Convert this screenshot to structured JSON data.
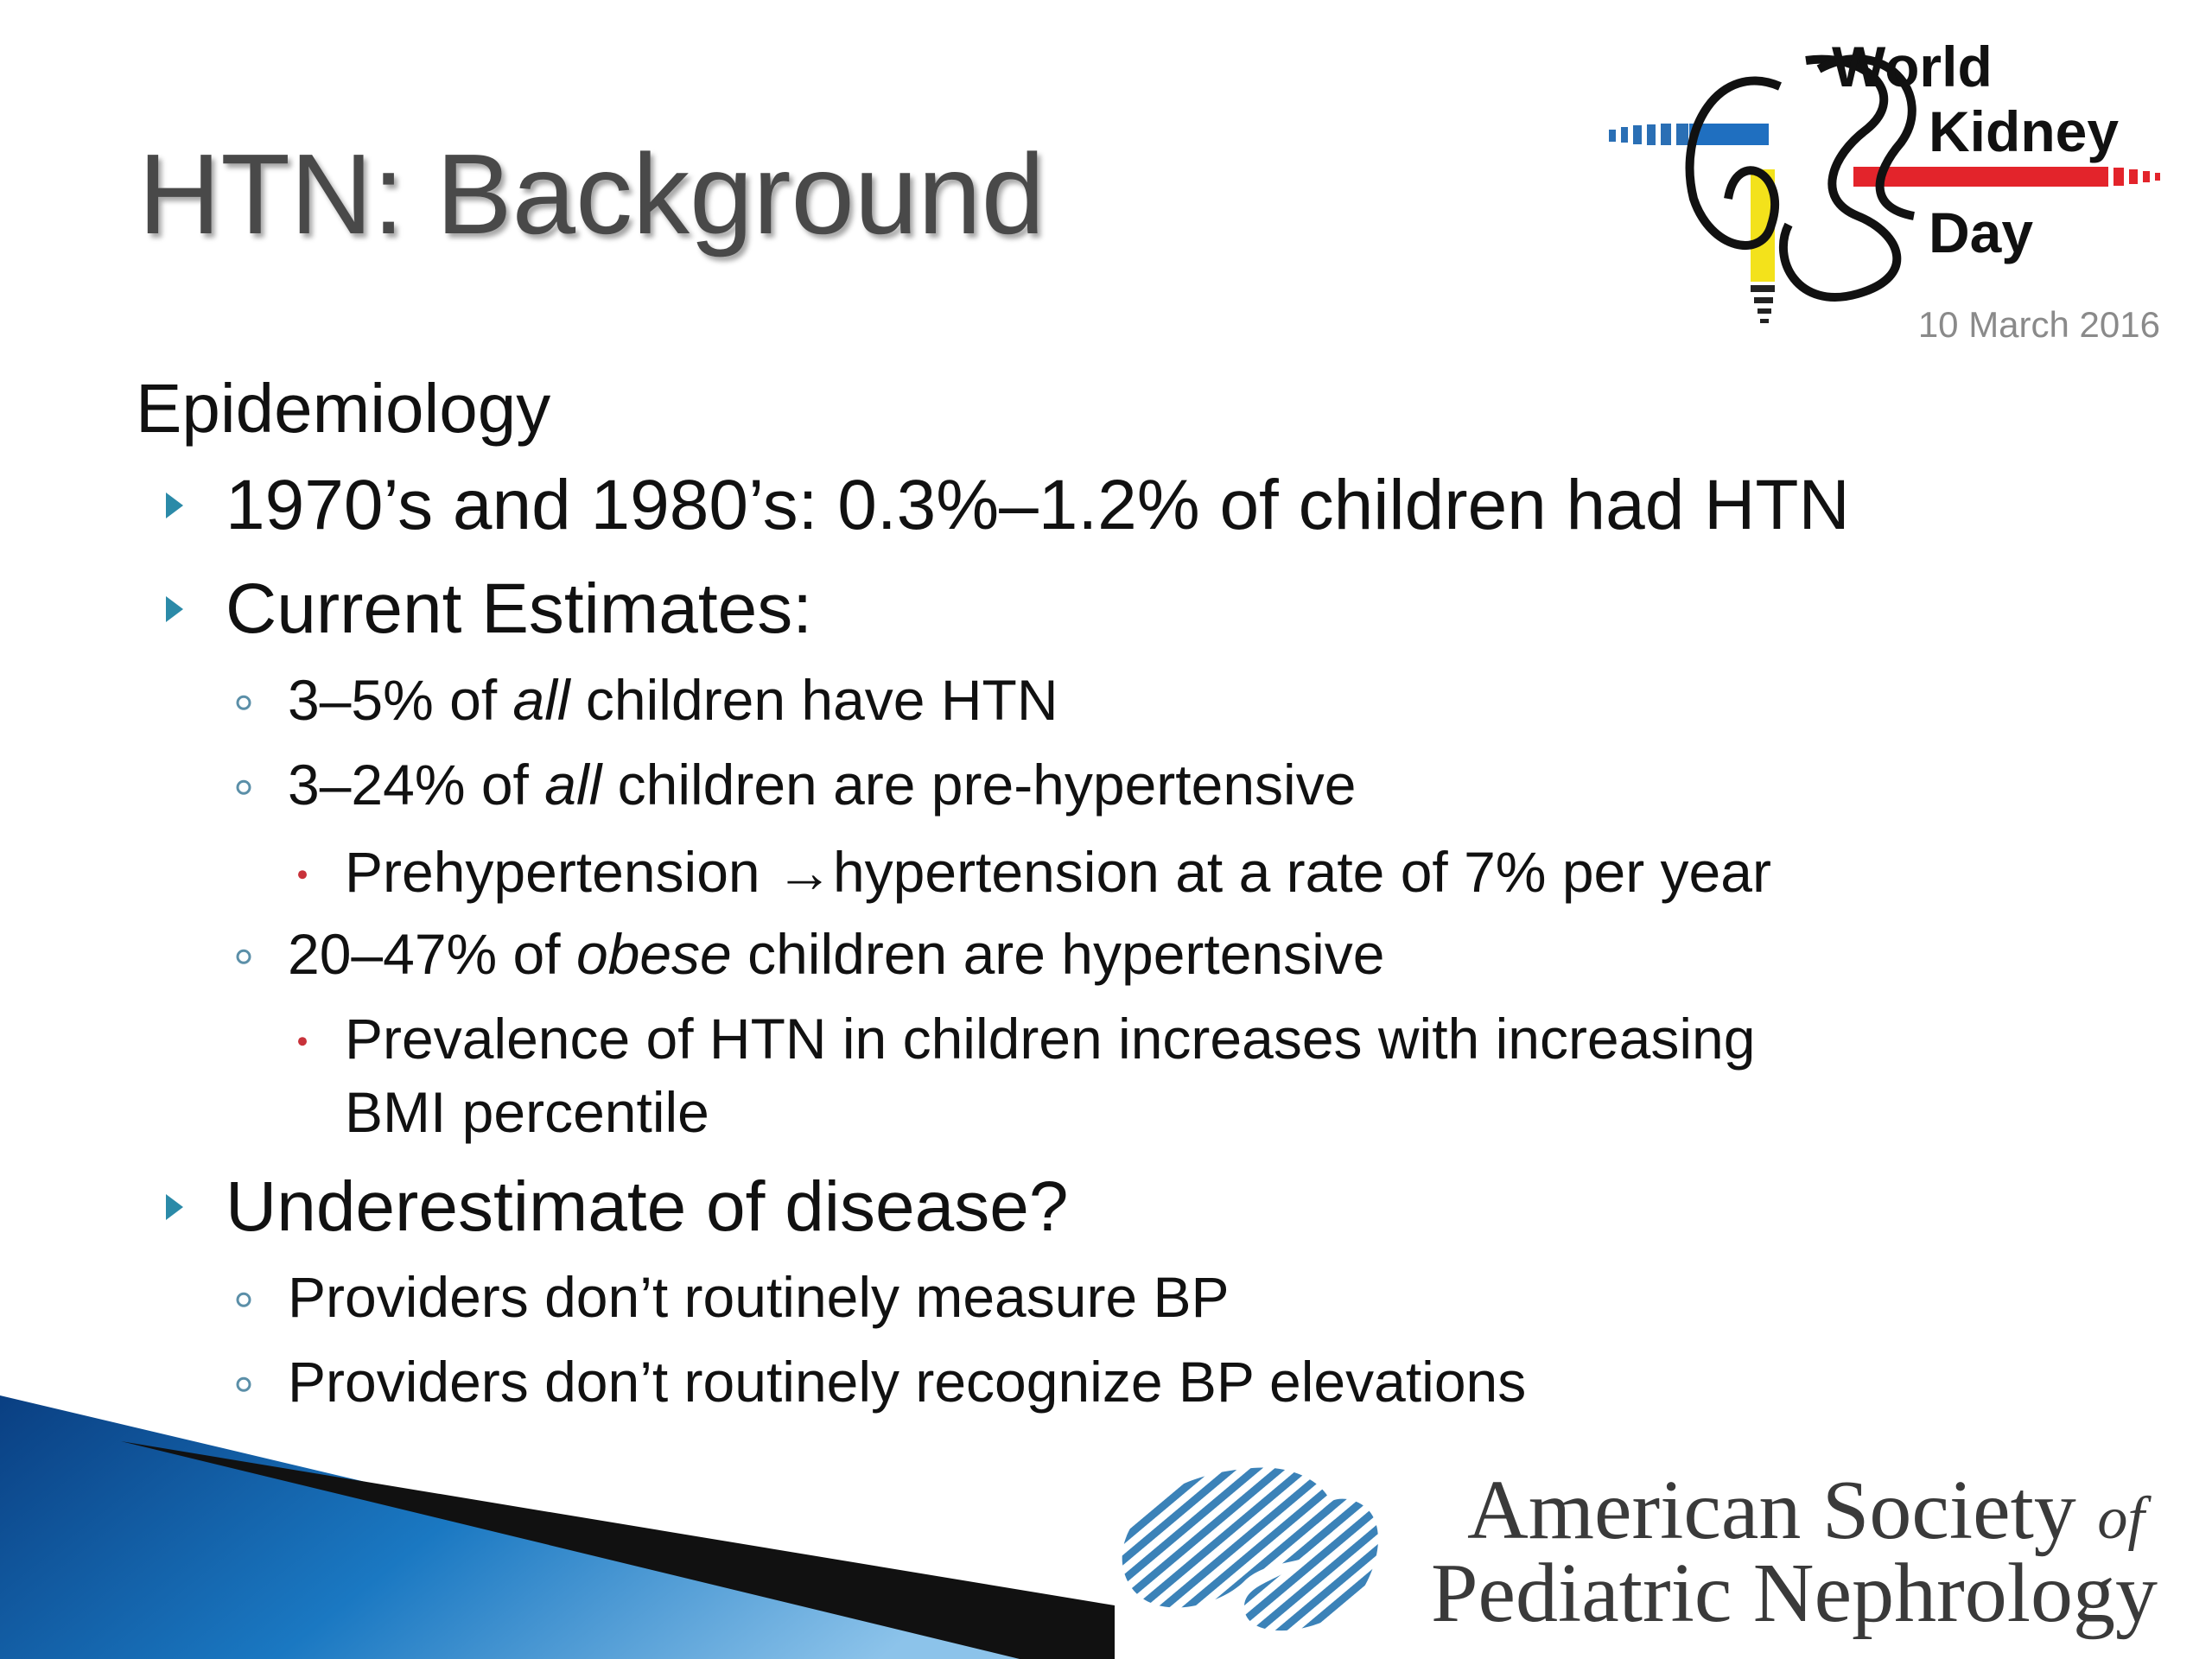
{
  "header": {
    "title": "HTN: Background"
  },
  "logo_wkd": {
    "lines": [
      "World",
      "Kidney",
      "Day"
    ],
    "date": "10 March 2016"
  },
  "body": {
    "heading": "Epidemiology",
    "items": [
      {
        "level": 1,
        "lines": [
          [
            {
              "text": "1970’s and 1980’s: 0.3%–1.2% of children had HTN"
            }
          ]
        ]
      },
      {
        "level": 1,
        "lines": [
          [
            {
              "text": "Current Estimates:"
            }
          ]
        ]
      },
      {
        "level": 2,
        "lines": [
          [
            {
              "text": "3–5% of "
            },
            {
              "text": "all",
              "style": "italic"
            },
            {
              "text": " children have HTN"
            }
          ]
        ]
      },
      {
        "level": 2,
        "lines": [
          [
            {
              "text": "3–24% of "
            },
            {
              "text": "all",
              "style": "italic"
            },
            {
              "text": " children are pre-hypertensive"
            }
          ]
        ]
      },
      {
        "level": 3,
        "lines": [
          [
            {
              "text": "Prehypertension →hypertension at a rate of 7% per year"
            }
          ]
        ]
      },
      {
        "level": 2,
        "lines": [
          [
            {
              "text": "20–47% of "
            },
            {
              "text": "obese",
              "style": "italic"
            },
            {
              "text": " children are hypertensive"
            }
          ]
        ]
      },
      {
        "level": 3,
        "lines": [
          [
            {
              "text": "Prevalence of HTN in children increases with increasing"
            }
          ],
          [
            {
              "text": "BMI percentile"
            }
          ]
        ]
      },
      {
        "level": 1,
        "lines": [
          [
            {
              "text": "Underestimate of disease?"
            }
          ]
        ]
      },
      {
        "level": 2,
        "lines": [
          [
            {
              "text": "Providers don’t routinely measure BP"
            }
          ]
        ]
      },
      {
        "level": 2,
        "lines": [
          [
            {
              "text": "Providers don’t routinely recognize BP elevations"
            }
          ]
        ]
      }
    ]
  },
  "footer_logo": {
    "line1": [
      {
        "text": "American Society "
      },
      {
        "text": "of",
        "style": "italic"
      }
    ],
    "line2": "Pediatric Nephrology"
  }
}
